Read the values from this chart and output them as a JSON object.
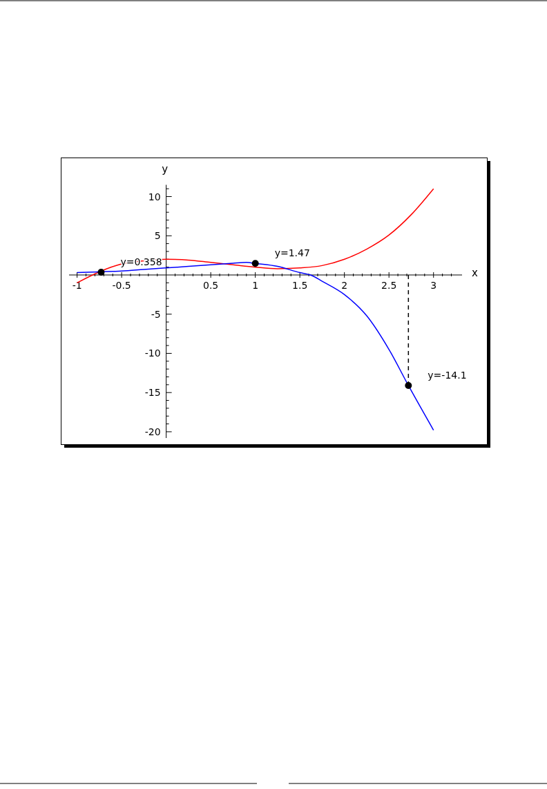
{
  "chart_data": {
    "type": "line",
    "xlabel": "x",
    "ylabel": "y",
    "xlim": [
      -1.09,
      3.32
    ],
    "ylim": [
      -20.8,
      11.5
    ],
    "xticks": [
      -1,
      -0.5,
      0.5,
      1,
      1.5,
      2,
      2.5,
      3,
      {
        "value": -0.9,
        "label": null
      },
      {
        "value": -0.8,
        "label": null
      },
      {
        "value": -0.7,
        "label": null
      },
      {
        "value": -0.6,
        "label": null
      },
      {
        "value": -0.4,
        "label": null
      },
      {
        "value": -0.3,
        "label": null
      },
      {
        "value": -0.2,
        "label": null
      },
      {
        "value": -0.1,
        "label": null
      },
      {
        "value": 0.1,
        "label": null
      },
      {
        "value": 0.2,
        "label": null
      },
      {
        "value": 0.3,
        "label": null
      },
      {
        "value": 0.4,
        "label": null
      },
      {
        "value": 0.6,
        "label": null
      },
      {
        "value": 0.7,
        "label": null
      },
      {
        "value": 0.8,
        "label": null
      },
      {
        "value": 0.9,
        "label": null
      },
      {
        "value": 1.1,
        "label": null
      },
      {
        "value": 1.2,
        "label": null
      },
      {
        "value": 1.3,
        "label": null
      },
      {
        "value": 1.4,
        "label": null
      },
      {
        "value": 1.6,
        "label": null
      },
      {
        "value": 1.7,
        "label": null
      },
      {
        "value": 1.8,
        "label": null
      },
      {
        "value": 1.9,
        "label": null
      },
      {
        "value": 2.1,
        "label": null
      },
      {
        "value": 2.2,
        "label": null
      },
      {
        "value": 2.3,
        "label": null
      },
      {
        "value": 2.4,
        "label": null
      },
      {
        "value": 2.6,
        "label": null
      },
      {
        "value": 2.7,
        "label": null
      },
      {
        "value": 2.8,
        "label": null
      },
      {
        "value": 2.9,
        "label": null
      },
      {
        "value": 3.1,
        "label": null
      },
      {
        "value": 3.2,
        "label": null
      }
    ],
    "yticks": [
      -20,
      -15,
      -10,
      -5,
      5,
      10,
      {
        "value": -19,
        "label": null
      },
      {
        "value": -18,
        "label": null
      },
      {
        "value": -17,
        "label": null
      },
      {
        "value": -16,
        "label": null
      },
      {
        "value": -14,
        "label": null
      },
      {
        "value": -13,
        "label": null
      },
      {
        "value": -12,
        "label": null
      },
      {
        "value": -11,
        "label": null
      },
      {
        "value": -9,
        "label": null
      },
      {
        "value": -8,
        "label": null
      },
      {
        "value": -7,
        "label": null
      },
      {
        "value": -6,
        "label": null
      },
      {
        "value": -4,
        "label": null
      },
      {
        "value": -3,
        "label": null
      },
      {
        "value": -2,
        "label": null
      },
      {
        "value": -1,
        "label": null
      },
      {
        "value": 1,
        "label": null
      },
      {
        "value": 2,
        "label": null
      },
      {
        "value": 3,
        "label": null
      },
      {
        "value": 4,
        "label": null
      },
      {
        "value": 6,
        "label": null
      },
      {
        "value": 7,
        "label": null
      },
      {
        "value": 8,
        "label": null
      },
      {
        "value": 9,
        "label": null
      },
      {
        "value": 11,
        "label": null
      }
    ],
    "grid": false,
    "series": [
      {
        "color": "#ff0000",
        "x": [
          -1,
          -0.75,
          -0.5,
          -0.25,
          0,
          0.25,
          0.5,
          0.75,
          1,
          1.25,
          1.5,
          1.75,
          2,
          2.25,
          2.5,
          2.75,
          3
        ],
        "values": [
          -1,
          0.4,
          1.4,
          1.8,
          2,
          1.9,
          1.6,
          1.3,
          1,
          0.8,
          0.9,
          1.2,
          2,
          3.3,
          5.1,
          7.7,
          11
        ]
      },
      {
        "color": "#0000ff",
        "x": [
          -1,
          -0.75,
          -0.5,
          -0.25,
          0,
          0.25,
          0.5,
          0.75,
          0.9,
          1,
          1.25,
          1.5,
          1.62,
          1.75,
          2,
          2.25,
          2.5,
          2.718,
          3
        ],
        "values": [
          0.3,
          0.4,
          0.5,
          0.7,
          0.9,
          1.1,
          1.3,
          1.5,
          1.6,
          1.47,
          1.1,
          0.3,
          0,
          -0.8,
          -2.5,
          -5.2,
          -9.5,
          -14.1,
          -19.8
        ]
      },
      {
        "type": "line",
        "color": "#000000",
        "line_style": "dashed",
        "x": [
          2.718,
          2.718
        ],
        "values": [
          0,
          -14.1
        ]
      },
      {
        "type": "scatter",
        "color": "#000000",
        "marker": "circle",
        "x": [
          -0.73,
          1,
          2.718
        ],
        "values": [
          0.358,
          1.47,
          -14.1
        ]
      }
    ],
    "annotations": [
      {
        "text": "y=0.358",
        "x": -0.73,
        "y": 0.358
      },
      {
        "text": "y=1.47",
        "x": 1,
        "y": 1.47
      },
      {
        "text": "y=-14.1",
        "x": 2.718,
        "y": -14.1
      }
    ]
  }
}
